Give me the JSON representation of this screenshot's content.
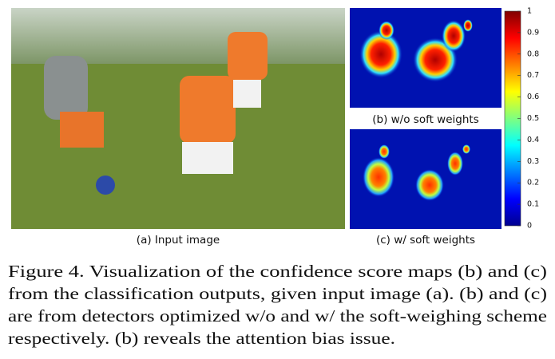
{
  "figure": {
    "panels": {
      "a": "(a) Input image",
      "b": "(b) w/o soft weights",
      "c": "(c) w/ soft weights"
    },
    "colorbar": {
      "lim": [
        0,
        1
      ],
      "ticks": [
        0,
        0.1,
        0.2,
        0.3,
        0.4,
        0.5,
        0.6,
        0.7,
        0.8,
        0.9,
        1
      ]
    },
    "caption_lines": [
      "Figure 4. Visualization of the confidence score maps (b) and (c)",
      "from the classification outputs, given input image (a). (b) and (c)",
      "are from detectors optimized w/o and w/ the soft-weighing scheme",
      "respectively. (b) reveals the attention bias issue."
    ]
  }
}
